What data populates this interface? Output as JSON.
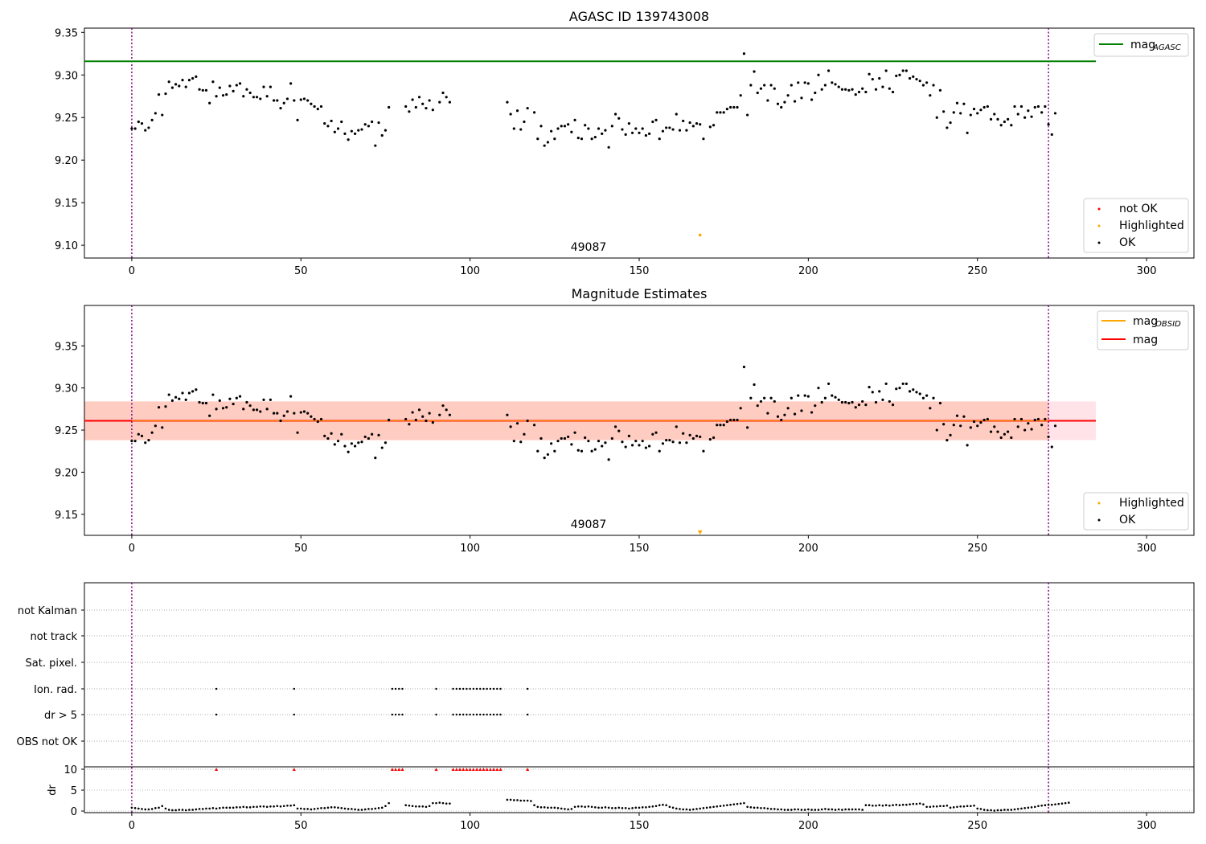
{
  "chart_data": [
    {
      "type": "scatter",
      "title": "AGASC ID 139743008",
      "obs_label": "49087",
      "xlim": [
        -14,
        314
      ],
      "ylim": [
        9.085,
        9.355
      ],
      "xticks": [
        0,
        50,
        100,
        150,
        200,
        250,
        300
      ],
      "yticks": [
        9.1,
        9.15,
        9.2,
        9.25,
        9.3,
        9.35
      ],
      "vlines": [
        0,
        271
      ],
      "hline": {
        "name": "mag_AGASC",
        "y": 9.316,
        "x_end": 285,
        "color": "#008000"
      },
      "highlighted_points": [
        {
          "x": 168,
          "y": 9.112
        }
      ],
      "legend_top": {
        "entries": [
          {
            "label": "mag",
            "sub": "AGASC",
            "color": "#008000"
          }
        ]
      },
      "legend_bottom": {
        "entries": [
          {
            "label": "not OK",
            "color": "#ff0000"
          },
          {
            "label": "Highlighted",
            "color": "#ffa500"
          },
          {
            "label": "OK",
            "color": "#000000"
          }
        ]
      }
    },
    {
      "type": "scatter",
      "title": "Magnitude Estimates",
      "obs_label": "49087",
      "xlim": [
        -14,
        314
      ],
      "ylim": [
        9.125,
        9.398
      ],
      "xticks": [
        0,
        50,
        100,
        150,
        200,
        250,
        300
      ],
      "yticks": [
        9.15,
        9.2,
        9.25,
        9.3,
        9.35
      ],
      "vlines": [
        0,
        271
      ],
      "mag_line": {
        "y": 9.261,
        "x_end": 285,
        "color": "#ff0000"
      },
      "band": {
        "y0": 9.238,
        "y1": 9.284,
        "x_end": 285
      },
      "highlighted_points": [
        {
          "x": 168,
          "y": 9.128
        }
      ],
      "legend_top": {
        "entries": [
          {
            "label": "mag",
            "sub": "OBSID",
            "color": "#ffa500"
          },
          {
            "label": "mag",
            "sub": "",
            "color": "#ff0000"
          }
        ]
      },
      "legend_bottom": {
        "entries": [
          {
            "label": "Highlighted",
            "color": "#ffa500"
          },
          {
            "label": "OK",
            "color": "#000000"
          }
        ]
      }
    },
    {
      "type": "scatter",
      "xlim": [
        -14,
        314
      ],
      "xticks": [
        0,
        50,
        100,
        150,
        200,
        250,
        300
      ],
      "vlines": [
        0,
        271
      ],
      "flag_rows": [
        "not Kalman",
        "not track",
        "Sat. pixel.",
        "Ion. rad.",
        "dr > 5",
        "OBS not OK"
      ],
      "flagged_x": [
        25,
        48,
        77,
        78,
        79,
        80,
        90,
        95,
        96,
        97,
        98,
        99,
        100,
        101,
        102,
        103,
        104,
        105,
        106,
        107,
        108,
        109,
        117
      ],
      "dr_label": "dr",
      "dr_yticks": [
        0,
        5,
        10
      ],
      "dr_ylim": [
        -0.5,
        10.5
      ]
    }
  ],
  "series": {
    "mag": [
      9.237,
      9.237,
      9.245,
      9.243,
      9.235,
      9.238,
      9.247,
      9.255,
      9.277,
      9.253,
      9.278,
      9.292,
      9.285,
      9.289,
      9.287,
      9.294,
      9.286,
      9.294,
      9.296,
      9.298,
      9.283,
      9.282,
      9.282,
      9.267,
      9.292,
      9.275,
      9.285,
      9.276,
      9.277,
      9.287,
      9.281,
      9.288,
      9.29,
      9.275,
      9.283,
      9.279,
      9.274,
      9.274,
      9.272,
      9.286,
      9.275,
      9.286,
      9.27,
      9.27,
      9.261,
      9.267,
      9.272,
      9.29,
      9.27,
      9.247,
      9.271,
      9.272,
      9.27,
      9.266,
      9.263,
      9.26,
      9.263,
      9.243,
      9.24,
      9.246,
      9.233,
      9.237,
      9.245,
      9.231,
      9.224,
      9.234,
      9.231,
      9.235,
      9.236,
      9.242,
      9.24,
      9.245,
      9.217,
      9.244,
      9.229,
      9.235,
      9.262,
      null,
      null,
      null,
      null,
      9.263,
      9.257,
      9.271,
      9.262,
      9.274,
      9.266,
      9.261,
      9.27,
      9.259,
      null,
      9.268,
      9.279,
      9.274,
      9.268,
      null,
      null,
      null,
      null,
      null,
      null,
      null,
      null,
      null,
      null,
      null,
      null,
      null,
      null,
      null,
      null,
      9.268,
      9.254,
      9.237,
      9.258,
      9.236,
      9.245,
      9.261,
      null,
      9.256,
      9.225,
      9.24,
      9.217,
      9.221,
      9.234,
      9.225,
      9.237,
      9.24,
      9.24,
      9.242,
      9.233,
      9.247,
      9.226,
      9.225,
      9.241,
      9.237,
      9.225,
      9.227,
      9.237,
      9.231,
      9.235,
      9.215,
      9.24,
      9.254,
      9.249,
      9.236,
      9.23,
      9.243,
      9.232,
      9.237,
      9.232,
      9.237,
      9.229,
      9.231,
      9.245,
      9.247,
      9.225,
      9.234,
      9.238,
      9.238,
      9.236,
      9.254,
      9.235,
      9.246,
      9.235,
      9.244,
      9.24,
      9.243,
      9.242,
      9.225,
      null,
      9.239,
      9.241,
      9.256,
      9.256,
      9.256,
      9.26,
      9.262,
      9.262,
      9.262,
      9.276,
      9.325,
      9.253,
      9.288,
      9.304,
      9.279,
      9.284,
      9.288,
      9.27,
      9.288,
      9.284,
      9.266,
      9.262,
      9.268,
      9.276,
      9.288,
      9.269,
      9.291,
      9.273,
      9.291,
      9.29,
      9.271,
      9.279,
      9.3,
      9.283,
      9.288,
      9.305,
      9.291,
      9.289,
      9.286,
      9.283,
      9.283,
      9.282,
      9.283,
      9.277,
      9.28,
      9.284,
      9.28,
      9.301,
      9.295,
      9.283,
      9.296,
      9.286,
      9.305,
      9.284,
      9.28,
      9.299,
      9.3,
      9.305,
      9.305,
      9.296,
      9.298,
      9.295,
      9.293,
      9.288,
      9.291,
      9.276,
      9.288,
      9.25,
      9.282,
      9.257,
      9.238,
      9.244,
      9.256,
      9.267,
      9.255,
      9.266,
      9.232,
      9.253,
      9.26,
      9.255,
      9.259,
      9.262,
      9.263,
      9.248,
      9.254,
      9.248,
      9.241,
      9.245,
      9.248,
      9.241,
      9.263,
      9.254,
      9.263,
      9.25,
      9.258,
      9.251,
      9.262,
      9.263,
      9.256,
      9.263,
      9.242,
      9.23,
      9.255
    ],
    "dr": [
      0.8,
      0.7,
      0.6,
      0.5,
      0.4,
      0.4,
      0.5,
      0.7,
      0.8,
      1.2,
      0.6,
      0.3,
      0.2,
      0.2,
      0.3,
      0.3,
      0.2,
      0.3,
      0.3,
      0.4,
      0.5,
      0.5,
      0.6,
      0.6,
      0.7,
      0.6,
      0.7,
      0.8,
      0.8,
      0.8,
      0.8,
      0.9,
      0.9,
      1.0,
      0.9,
      0.9,
      1.0,
      1.0,
      1.1,
      1.1,
      1.0,
      1.1,
      1.1,
      1.2,
      1.1,
      1.2,
      1.3,
      1.3,
      1.4,
      0.6,
      0.6,
      0.5,
      0.5,
      0.4,
      0.5,
      0.6,
      0.7,
      0.7,
      0.8,
      0.9,
      0.9,
      0.8,
      0.7,
      0.6,
      0.5,
      0.5,
      0.4,
      0.3,
      0.3,
      0.4,
      0.5,
      0.5,
      0.6,
      0.7,
      0.8,
      1.2,
      1.9,
      null,
      null,
      null,
      null,
      1.4,
      1.3,
      1.2,
      1.1,
      1.1,
      1.1,
      1.0,
      1.2,
      1.9,
      1.9,
      2.0,
      1.9,
      1.8,
      1.8,
      null,
      null,
      null,
      null,
      null,
      null,
      null,
      null,
      null,
      null,
      null,
      null,
      null,
      null,
      null,
      null,
      2.7,
      2.7,
      2.6,
      2.6,
      2.5,
      2.5,
      2.5,
      2.4,
      1.4,
      1.0,
      0.9,
      0.9,
      0.8,
      0.8,
      0.8,
      0.7,
      0.6,
      0.5,
      0.4,
      0.5,
      1.0,
      1.1,
      1.1,
      1.0,
      1.1,
      1.0,
      0.9,
      0.8,
      0.8,
      0.9,
      0.8,
      0.7,
      0.7,
      0.8,
      0.7,
      0.7,
      0.6,
      0.7,
      0.8,
      0.8,
      0.9,
      0.9,
      1.0,
      1.1,
      1.2,
      1.4,
      1.5,
      1.4,
      1.0,
      0.8,
      0.6,
      0.5,
      0.4,
      0.4,
      0.3,
      0.4,
      0.5,
      0.6,
      0.7,
      0.8,
      0.9,
      1.0,
      1.1,
      1.2,
      1.3,
      1.4,
      1.5,
      1.6,
      1.7,
      1.8,
      1.9,
      1.0,
      0.9,
      0.8,
      0.8,
      0.7,
      0.7,
      0.6,
      0.5,
      0.5,
      0.4,
      0.4,
      0.3,
      0.3,
      0.3,
      0.4,
      0.4,
      0.3,
      0.3,
      0.4,
      0.3,
      0.3,
      0.3,
      0.4,
      0.5,
      0.4,
      0.4,
      0.3,
      0.4,
      0.3,
      0.4,
      0.4,
      0.4,
      0.4,
      0.4,
      0.3,
      1.4,
      1.4,
      1.3,
      1.3,
      1.4,
      1.3,
      1.4,
      1.3,
      1.4,
      1.5,
      1.4,
      1.5,
      1.5,
      1.6,
      1.7,
      1.7,
      1.8,
      1.6,
      1.0,
      1.0,
      1.1,
      1.1,
      1.2,
      1.2,
      1.3,
      0.8,
      0.9,
      1.0,
      1.1,
      1.1,
      1.2,
      1.2,
      1.3,
      0.6,
      0.5,
      0.3,
      0.2,
      0.2,
      0.1,
      0.2,
      0.2,
      0.3,
      0.3,
      0.3,
      0.4,
      0.5,
      0.6,
      0.7,
      0.8,
      0.9,
      1.0,
      1.2,
      1.3,
      1.4,
      1.5,
      1.5,
      1.6,
      1.7,
      1.8,
      1.9,
      2.0
    ]
  },
  "colors": {
    "ok": "#000000",
    "not_ok": "#ff0000",
    "highlighted": "#ffa500",
    "vline": "#800080",
    "agasc": "#008000",
    "mag": "#ff0000",
    "band": "#ffc0cb",
    "band_inner": "#ffa07a"
  }
}
